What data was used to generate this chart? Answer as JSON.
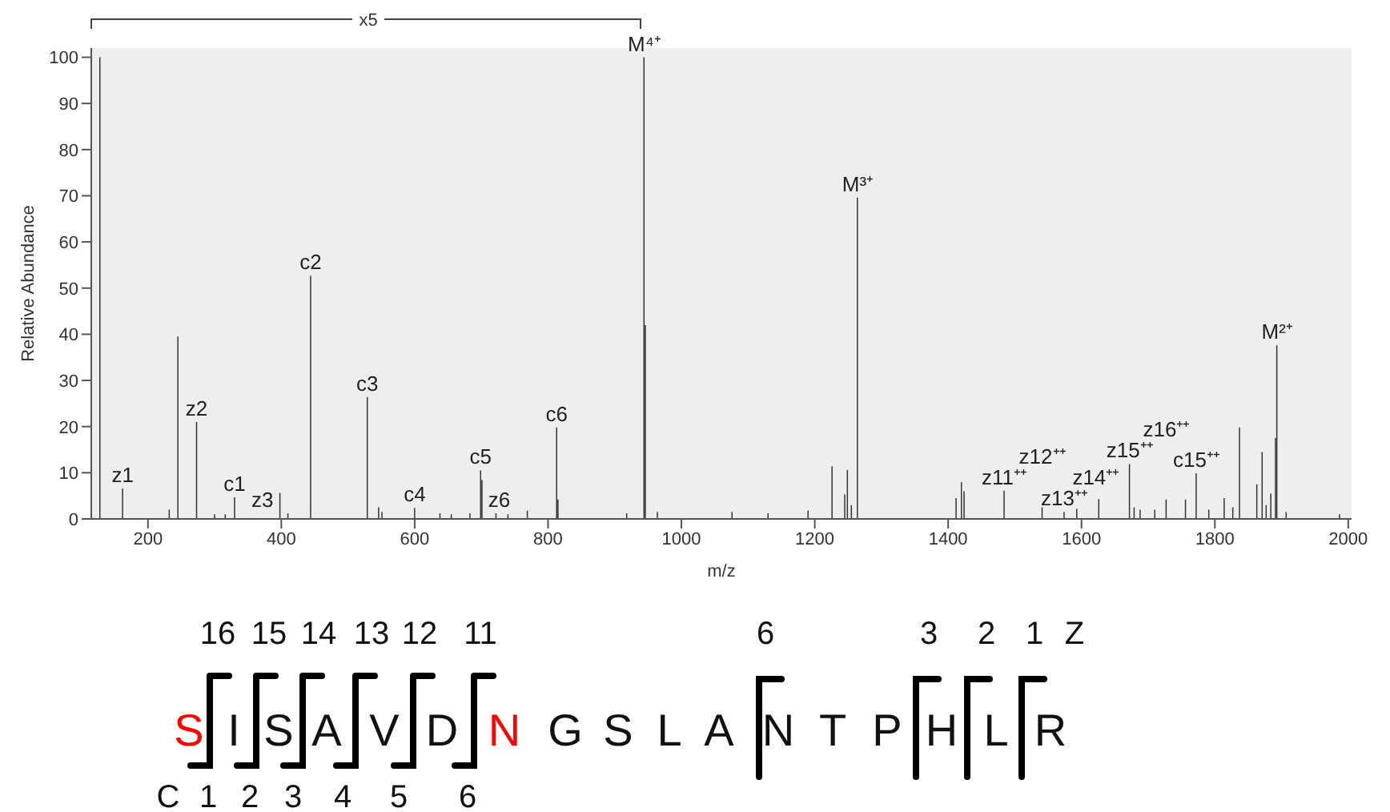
{
  "chart_data": {
    "type": "bar",
    "xlabel": "m/z",
    "ylabel": "Relative Abundance",
    "x": [
      128,
      162,
      232,
      245,
      273,
      300,
      316,
      330,
      398,
      410,
      444,
      529,
      546,
      551,
      600,
      638,
      655,
      683,
      699,
      701,
      722,
      740,
      769,
      813,
      815,
      918,
      944,
      946,
      964,
      1076,
      1130,
      1190,
      1226,
      1245,
      1249,
      1255,
      1264,
      1412,
      1420,
      1424,
      1484,
      1541,
      1574,
      1593,
      1626,
      1672,
      1679,
      1688,
      1710,
      1727,
      1756,
      1772,
      1791,
      1814,
      1827,
      1837,
      1863,
      1871,
      1877,
      1884,
      1891,
      1893,
      1907,
      1987
    ],
    "series": [
      {
        "color": "#333333",
        "values": [
          100,
          6.6,
          2,
          39.5,
          21,
          1,
          1,
          4.7,
          5.6,
          1.2,
          52.7,
          26.4,
          2.5,
          1.5,
          2.4,
          1.2,
          1,
          1.2,
          10.5,
          8.4,
          1.2,
          1,
          1.8,
          19.8,
          4.2,
          1.2,
          100,
          42,
          1.5,
          1.5,
          1.2,
          1.8,
          11.4,
          5.3,
          10.6,
          3,
          69.6,
          4.5,
          8,
          6,
          6.1,
          2.5,
          1.5,
          2.2,
          4.3,
          11.9,
          2.5,
          2,
          2,
          4.2,
          4.2,
          9.9,
          2,
          4.5,
          2.5,
          19.8,
          7.5,
          14.5,
          3,
          5.5,
          17.5,
          37.6,
          1.5,
          1
        ]
      }
    ],
    "xlim": [
      115,
      2005
    ],
    "xticks": [
      200,
      400,
      600,
      800,
      1000,
      1200,
      1400,
      1600,
      1800,
      2000
    ],
    "ylim": [
      0,
      102
    ],
    "yticks": [
      0,
      10,
      20,
      30,
      40,
      50,
      60,
      70,
      80,
      90,
      100
    ],
    "annotations": [
      {
        "text": "z1",
        "x": 162,
        "y": 6.6
      },
      {
        "text": "z2",
        "x": 273,
        "y": 21
      },
      {
        "text": "c1",
        "x": 330,
        "y": 4.7
      },
      {
        "text": "z3",
        "x": 410,
        "y": 1.2
      },
      {
        "text": "c2",
        "x": 444,
        "y": 52.7
      },
      {
        "text": "c3",
        "x": 529,
        "y": 26.4
      },
      {
        "text": "c4",
        "x": 600,
        "y": 2.4
      },
      {
        "text": "c5",
        "x": 699,
        "y": 10.5
      },
      {
        "text": "z6",
        "x": 722,
        "y": 1.2
      },
      {
        "text": "c6",
        "x": 813,
        "y": 19.8
      },
      {
        "text": "M⁴⁺",
        "x": 944,
        "y": 100
      },
      {
        "text": "M³⁺",
        "x": 1264,
        "y": 69.6
      },
      {
        "text": "z11⁺⁺",
        "x": 1484,
        "y": 6.1
      },
      {
        "text": "z12⁺⁺",
        "x": 1541,
        "y": 2.5
      },
      {
        "text": "z13⁺⁺",
        "x": 1574,
        "y": 1.5
      },
      {
        "text": "z14⁺⁺",
        "x": 1626,
        "y": 4.3
      },
      {
        "text": "z15⁺⁺",
        "x": 1672,
        "y": 11.9
      },
      {
        "text": "z16⁺⁺",
        "x": 1727,
        "y": 4.2
      },
      {
        "text": "c15⁺⁺",
        "x": 1772,
        "y": 9.9
      },
      {
        "text": "M²⁺",
        "x": 1893,
        "y": 37.6
      },
      "x5",
      "16",
      "15",
      "14",
      "13",
      "12",
      "11",
      "6",
      "3",
      "2",
      "1",
      "Z",
      "S",
      "I",
      "S",
      "A",
      "V",
      "D",
      "N",
      "G",
      "S",
      "L",
      "A",
      "N",
      "T",
      "P",
      "H",
      "L",
      "R",
      "C",
      "1",
      "2",
      "3",
      "4",
      "5",
      "6"
    ]
  }
}
